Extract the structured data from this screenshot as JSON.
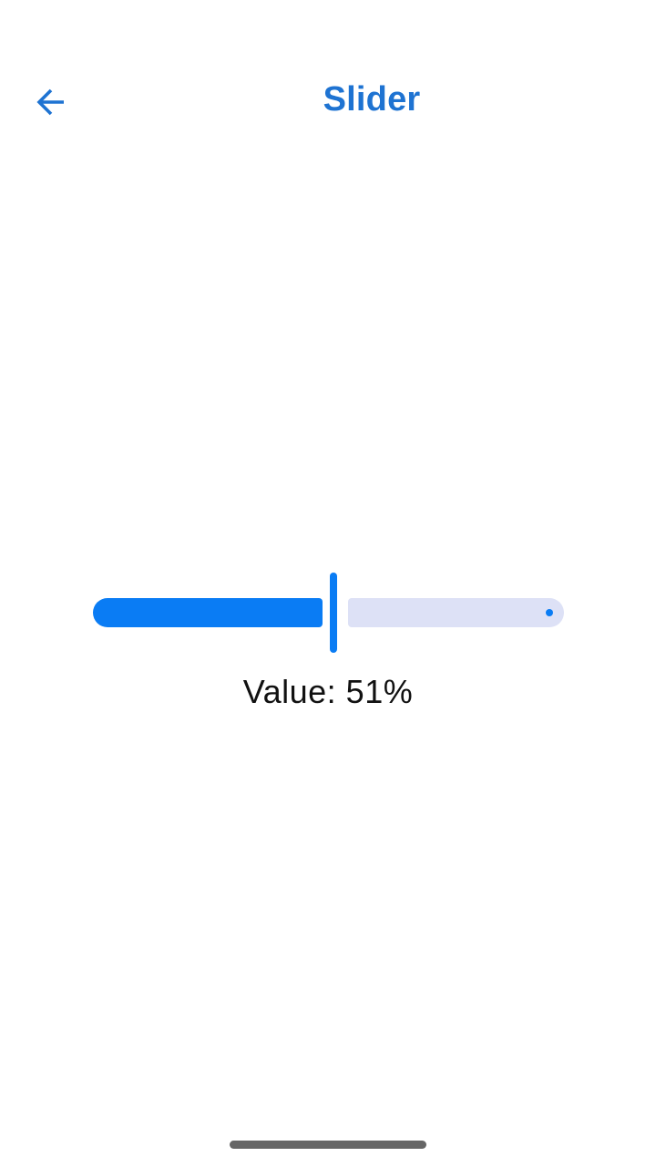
{
  "header": {
    "title": "Slider",
    "back_icon": "arrow-left-icon"
  },
  "slider": {
    "value_fraction": 0.51,
    "value_text": "Value: 51%",
    "active_color": "#0a7cf4",
    "inactive_color": "#dde1f6"
  },
  "colors": {
    "accent": "#1e73d2"
  }
}
